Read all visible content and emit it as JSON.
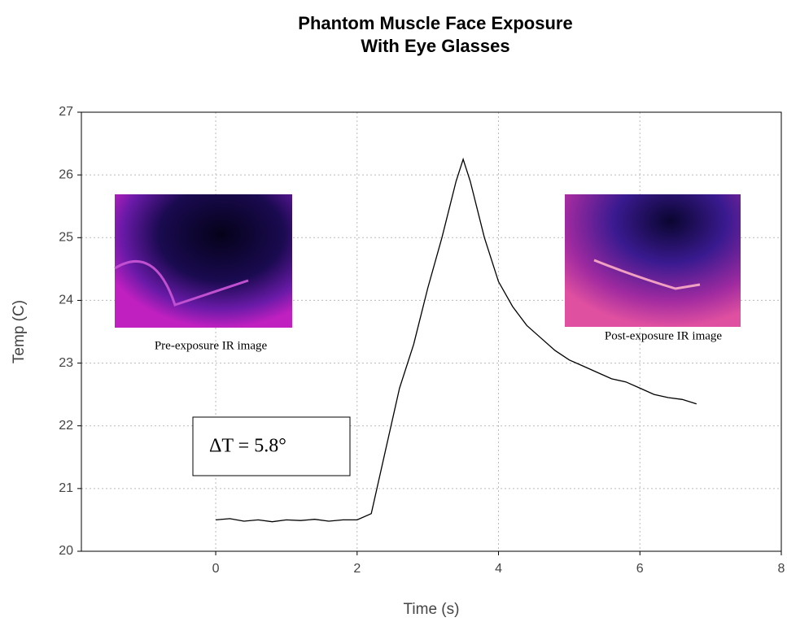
{
  "chart_data": {
    "type": "line",
    "title": [
      "Phantom Muscle Face Exposure",
      "With Eye Glasses"
    ],
    "x_label": "Time (s)",
    "y_label": "Temp (C)",
    "xlim": [
      -1.9,
      8
    ],
    "xticks": [
      0,
      2,
      4,
      6,
      8
    ],
    "ylim": [
      20,
      27
    ],
    "yticks": [
      20,
      21,
      22,
      23,
      24,
      25,
      26,
      27
    ],
    "grid": true,
    "series": [
      {
        "color": "#000000",
        "x": [
          0,
          0.2,
          0.4,
          0.6,
          0.8,
          1.0,
          1.2,
          1.4,
          1.6,
          1.8,
          2.0,
          2.2,
          2.4,
          2.6,
          2.8,
          3.0,
          3.2,
          3.4,
          3.5,
          3.6,
          3.8,
          4.0,
          4.2,
          4.4,
          4.6,
          4.8,
          5.0,
          5.2,
          5.4,
          5.6,
          5.8,
          6.0,
          6.2,
          6.4,
          6.6,
          6.8
        ],
        "values": [
          20.5,
          20.52,
          20.48,
          20.5,
          20.47,
          20.5,
          20.49,
          20.51,
          20.48,
          20.5,
          20.5,
          20.6,
          21.6,
          22.6,
          23.3,
          24.2,
          25.0,
          25.9,
          26.25,
          25.9,
          25.0,
          24.3,
          23.9,
          23.6,
          23.4,
          23.2,
          23.05,
          22.95,
          22.85,
          22.75,
          22.7,
          22.6,
          22.5,
          22.45,
          22.42,
          22.35
        ]
      }
    ],
    "annotations": [
      "ΔT = 5.8°",
      "Pre-exposure IR image",
      "Post-exposure IR image"
    ]
  }
}
